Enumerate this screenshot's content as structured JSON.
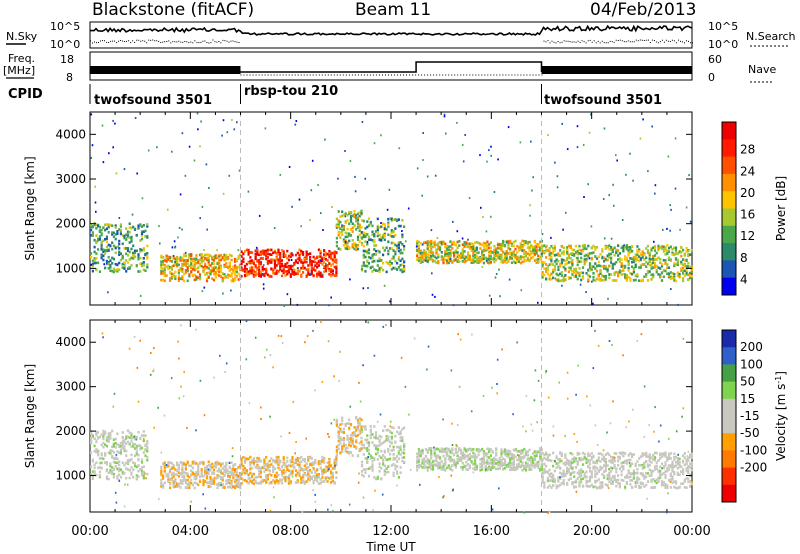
{
  "header": {
    "station": "Blackstone (fitACF)",
    "beam": "Beam 11",
    "date": "04/Feb/2013"
  },
  "strip": {
    "nsky_label": "N.Sky",
    "nsky_ticks": [
      "10^5",
      "10^0"
    ],
    "nsearch_label": "N.Search",
    "nsearch_ticks": [
      "10^5",
      "10^0"
    ],
    "freq_label": "Freq.",
    "freq_unit": "[MHz]",
    "freq_ticks": [
      "18",
      "8"
    ],
    "nave_label": "Nave",
    "nave_ticks": [
      "60",
      "0"
    ],
    "cpid_label": "CPID"
  },
  "cpid_segments": [
    {
      "name": "twofsound 3501",
      "start_h": 0,
      "end_h": 6
    },
    {
      "name": "rbsp-tou 210",
      "start_h": 6,
      "end_h": 18
    },
    {
      "name": "twofsound 3501",
      "start_h": 18,
      "end_h": 24
    }
  ],
  "colors": {
    "power_scale": [
      "#0000ee",
      "#1c55b4",
      "#2a8a6a",
      "#4aa84a",
      "#a6c830",
      "#ffc400",
      "#ff9000",
      "#ff5000",
      "#ff1a00",
      "#ee0000"
    ],
    "velocity_scale": [
      "#1a2aaa",
      "#2f5fc8",
      "#46a046",
      "#7fd44f",
      "#c8c8c0",
      "#c8c8c0",
      "#ffa000",
      "#ff7a00",
      "#ff3000",
      "#ee0000"
    ]
  },
  "chart_data": [
    {
      "type": "heatmap",
      "title": "Power",
      "ylabel": "Slant Range [km]",
      "xlabel": "",
      "xlim": [
        0,
        24
      ],
      "ylim": [
        180,
        4500
      ],
      "yticks": [
        "1000",
        "2000",
        "3000",
        "4000"
      ],
      "colorbar_label": "Power [dB]",
      "colorbar_ticks": [
        "28",
        "24",
        "20",
        "16",
        "12",
        "8",
        "4"
      ],
      "colorbar_range": [
        0,
        32
      ],
      "echo_bands": [
        {
          "t": [
            0,
            2.3
          ],
          "range_km": [
            900,
            2000
          ],
          "center_dB": 10
        },
        {
          "t": [
            2.8,
            6
          ],
          "range_km": [
            700,
            1300
          ],
          "center_dB": 18
        },
        {
          "t": [
            6,
            9.8
          ],
          "range_km": [
            800,
            1400
          ],
          "center_dB": 27
        },
        {
          "t": [
            9.8,
            10.8
          ],
          "range_km": [
            1400,
            2300
          ],
          "center_dB": 14
        },
        {
          "t": [
            10.8,
            12.5
          ],
          "range_km": [
            900,
            2100
          ],
          "center_dB": 12
        },
        {
          "t": [
            13,
            18
          ],
          "range_km": [
            1100,
            1600
          ],
          "center_dB": 16
        },
        {
          "t": [
            18,
            24
          ],
          "range_km": [
            700,
            1500
          ],
          "center_dB": 14
        }
      ]
    },
    {
      "type": "heatmap",
      "title": "Velocity",
      "ylabel": "Slant Range [km]",
      "xlabel": "Time UT",
      "xlim": [
        0,
        24
      ],
      "ylim": [
        180,
        4500
      ],
      "yticks": [
        "1000",
        "2000",
        "3000",
        "4000"
      ],
      "xticks": [
        "00:00",
        "04:00",
        "08:00",
        "12:00",
        "16:00",
        "20:00",
        "00:00"
      ],
      "colorbar_label": "Velocity [m s",
      "colorbar_label_sup": "-1",
      "colorbar_label_end": "]",
      "colorbar_ticks": [
        "200",
        "100",
        "50",
        "15",
        "-15",
        "-50",
        "-100",
        "-200"
      ],
      "echo_bands": [
        {
          "t": [
            0,
            2.3
          ],
          "range_km": [
            900,
            2000
          ],
          "velocity": 0
        },
        {
          "t": [
            2.8,
            6
          ],
          "range_km": [
            700,
            1300
          ],
          "velocity": -40
        },
        {
          "t": [
            6,
            9.8
          ],
          "range_km": [
            800,
            1400
          ],
          "velocity": -45
        },
        {
          "t": [
            9.8,
            10.8
          ],
          "range_km": [
            1400,
            2300
          ],
          "velocity": -40
        },
        {
          "t": [
            10.8,
            12.5
          ],
          "range_km": [
            900,
            2100
          ],
          "velocity": 0
        },
        {
          "t": [
            13,
            18
          ],
          "range_km": [
            1100,
            1600
          ],
          "velocity": 0
        },
        {
          "t": [
            18,
            24
          ],
          "range_km": [
            700,
            1500
          ],
          "velocity": -10
        }
      ]
    }
  ]
}
